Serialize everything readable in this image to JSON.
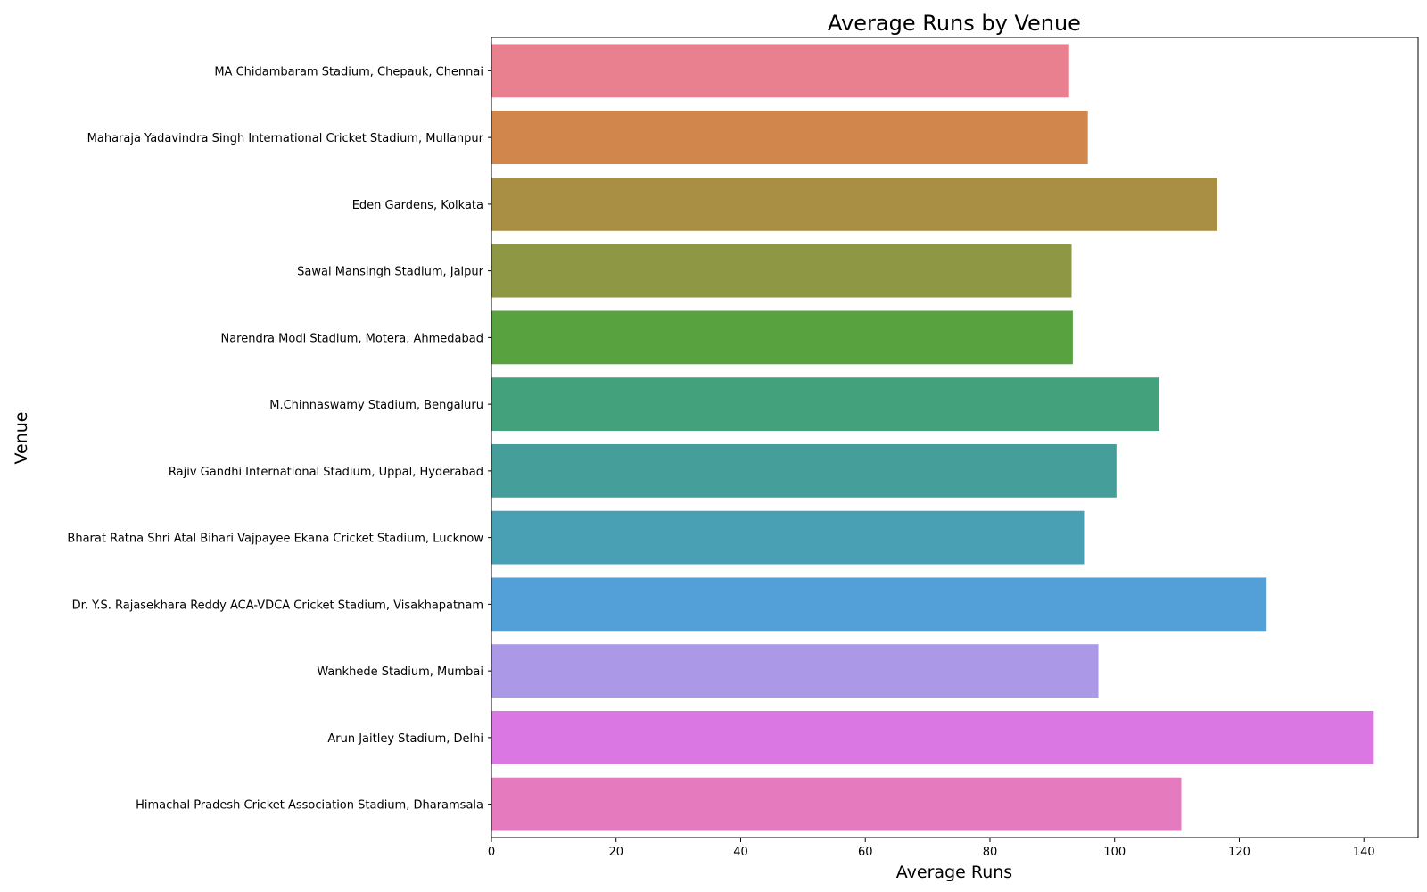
{
  "chart_data": {
    "type": "bar",
    "orientation": "horizontal",
    "title": "Average Runs by Venue",
    "xlabel": "Average Runs",
    "ylabel": "Venue",
    "xlim": [
      0,
      148.7
    ],
    "xticks": [
      0,
      20,
      40,
      60,
      80,
      100,
      120,
      140
    ],
    "grid": false,
    "legend": "none",
    "categories": [
      "MA Chidambaram Stadium, Chepauk, Chennai",
      "Maharaja Yadavindra Singh International Cricket Stadium, Mullanpur",
      "Eden Gardens, Kolkata",
      "Sawai Mansingh Stadium, Jaipur",
      "Narendra Modi Stadium, Motera, Ahmedabad",
      "M.Chinnaswamy Stadium, Bengaluru",
      "Rajiv Gandhi International Stadium, Uppal, Hyderabad",
      "Bharat Ratna Shri Atal Bihari Vajpayee Ekana Cricket Stadium, Lucknow",
      "Dr. Y.S. Rajasekhara Reddy ACA-VDCA Cricket Stadium, Visakhapatnam",
      "Wankhede Stadium, Mumbai",
      "Arun Jaitley Stadium, Delhi",
      "Himachal Pradesh Cricket Association Stadium, Dharamsala"
    ],
    "values": [
      92.7,
      95.7,
      116.5,
      93.1,
      93.3,
      107.2,
      100.3,
      95.1,
      124.4,
      97.4,
      141.6,
      110.7
    ],
    "colors": [
      "#e8808f",
      "#d1864b",
      "#a98f43",
      "#8d9744",
      "#58a240",
      "#43a27c",
      "#459e99",
      "#49a0b4",
      "#539fd8",
      "#ab98e7",
      "#da77e3",
      "#e57abe"
    ]
  }
}
